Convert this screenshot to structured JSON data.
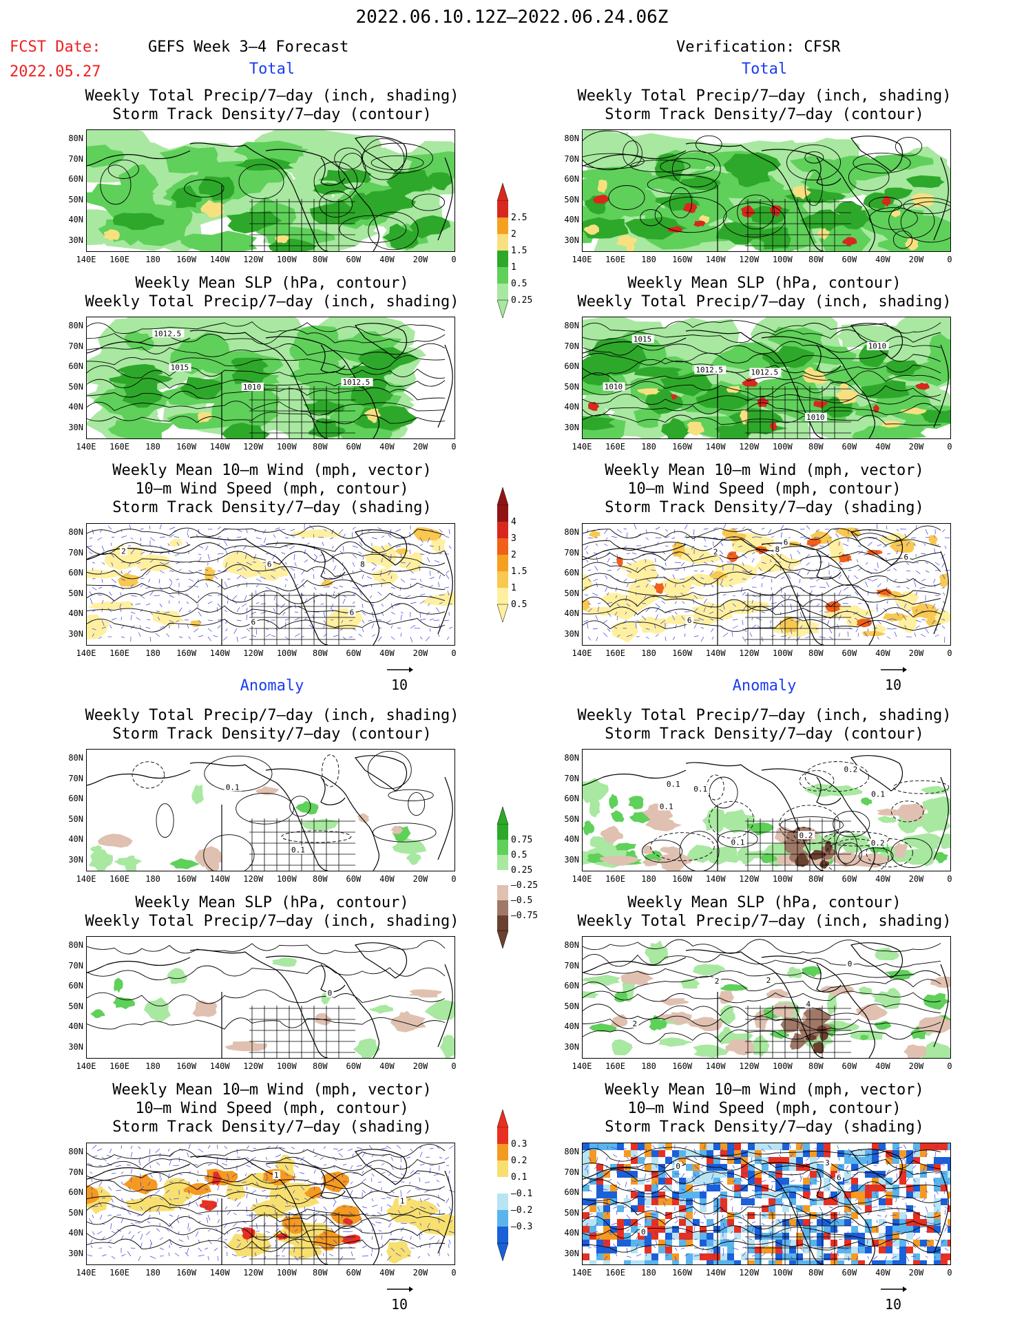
{
  "header": {
    "date_range": "2022.06.10.12Z–2022.06.24.06Z",
    "fcst_label": "FCST Date:",
    "fcst_date": "2022.05.27",
    "left_title": "GEFS Week 3–4 Forecast",
    "right_title": "Verification: CFSR"
  },
  "sections": {
    "total": "Total",
    "anomaly": "Anomaly"
  },
  "titles": {
    "precip_track": "Weekly Total Precip/7–day (inch, shading)\nStorm Track Density/7–day (contour)",
    "slp_precip": "Weekly Mean SLP (hPa, contour)\nWeekly Total Precip/7–day (inch, shading)",
    "wind_track": "Weekly Mean 10–m Wind (mph, vector)\n10–m Wind Speed (mph, contour)\nStorm Track Density/7–day (shading)"
  },
  "axes": {
    "lat_ticks": [
      "80N",
      "70N",
      "60N",
      "50N",
      "40N",
      "30N"
    ],
    "lon_ticks": [
      "140E",
      "160E",
      "180",
      "160W",
      "140W",
      "120W",
      "100W",
      "80W",
      "60W",
      "40W",
      "20W",
      "0"
    ]
  },
  "vector_ref": "10",
  "contour_labels": {
    "slp_left": [
      "1010",
      "1015",
      "1012.5",
      "1012.5"
    ],
    "slp_right": [
      "1012.5",
      "1010",
      "1015",
      "1012.5",
      "1010",
      "1010"
    ],
    "wind_left": [
      "6",
      "6",
      "2",
      "8",
      "6"
    ],
    "wind_right": [
      "8",
      "6",
      "6",
      "2",
      "6"
    ],
    "anom_track_left": [
      "0.1",
      "0.1"
    ],
    "anom_track_right": [
      "0.2",
      "0.1",
      "0.1",
      "0.1",
      "0.2",
      "0.1",
      "0.1",
      "0.2"
    ],
    "anom_slp_left": [
      "0"
    ],
    "anom_slp_right": [
      "0",
      "2",
      "4",
      "2",
      "2"
    ],
    "anom_wind_left": [
      "1",
      "1"
    ],
    "anom_wind_right": [
      "0",
      "3",
      "0",
      "6"
    ]
  },
  "colorbars": {
    "precip": {
      "labels": [
        "2.5",
        "2",
        "1.5",
        "1",
        "0.5",
        "0.25"
      ],
      "colors": [
        "#d8281e",
        "#f5a020",
        "#f8e080",
        "#2ea82a",
        "#5fd05a",
        "#a8e8a0"
      ]
    },
    "track": {
      "labels": [
        "4",
        "3",
        "2",
        "1.5",
        "1",
        "0.5"
      ],
      "colors": [
        "#901414",
        "#d8281e",
        "#f06018",
        "#f5a020",
        "#f8c850",
        "#fff0a0"
      ]
    },
    "precip_anom": {
      "labels": [
        "0.75",
        "0.5",
        "0.25",
        "–0.25",
        "–0.5",
        "–0.75"
      ],
      "colors": [
        "#2ea82a",
        "#5fd05a",
        "#a8e8a0",
        "#ffffff",
        "#e0c0b0",
        "#a07868",
        "#6a4030"
      ]
    },
    "track_anom": {
      "labels": [
        "0.3",
        "0.2",
        "0.1",
        "–0.1",
        "–0.2",
        "–0.3"
      ],
      "colors": [
        "#e83020",
        "#f59a20",
        "#f8e070",
        "#ffffff",
        "#b8e4f4",
        "#5ab4ec",
        "#1a60d8"
      ]
    }
  }
}
